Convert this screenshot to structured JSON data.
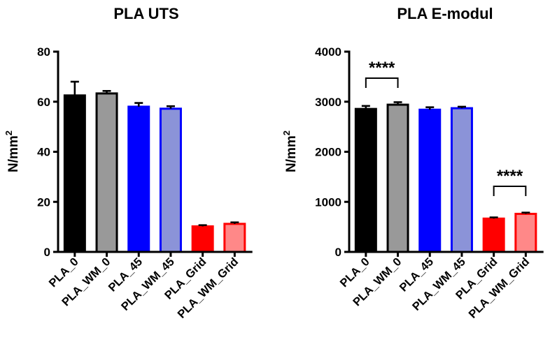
{
  "chart_data": [
    {
      "type": "bar",
      "title": "PLA UTS",
      "ylabel": "N/mm",
      "ylabel_sup": "2",
      "ylim": [
        0,
        80
      ],
      "yticks": [
        0,
        20,
        40,
        60,
        80
      ],
      "categories": [
        "PLA_0",
        "PLA_WM_0",
        "PLA_45",
        "PLA_WM_45",
        "PLA_Grid",
        "PLA_WM_Grid"
      ],
      "values": [
        62.5,
        63.3,
        58.0,
        57.2,
        10.2,
        11.2
      ],
      "errors": [
        5.5,
        1.0,
        1.5,
        1.0,
        0.5,
        0.6
      ],
      "fill_colors": [
        "#000000",
        "#999999",
        "#0000ff",
        "#8b93d8",
        "#ff0000",
        "#ff8888"
      ],
      "edge_colors": [
        "#000000",
        "#000000",
        "#0000ff",
        "#0000ff",
        "#ff0000",
        "#ff0000"
      ],
      "significance": []
    },
    {
      "type": "bar",
      "title": "PLA E-modul",
      "ylabel": "N/mm",
      "ylabel_sup": "2",
      "ylim": [
        0,
        4000
      ],
      "yticks": [
        0,
        1000,
        2000,
        3000,
        4000
      ],
      "categories": [
        "PLA_0",
        "PLA_WM_0",
        "PLA_45",
        "PLA_WM_45",
        "PLA_Grid",
        "PLA_WM_Grid"
      ],
      "values": [
        2855,
        2940,
        2840,
        2870,
        665,
        760
      ],
      "errors": [
        60,
        50,
        50,
        30,
        25,
        25
      ],
      "fill_colors": [
        "#000000",
        "#999999",
        "#0000ff",
        "#8b93d8",
        "#ff0000",
        "#ff8888"
      ],
      "edge_colors": [
        "#000000",
        "#000000",
        "#0000ff",
        "#0000ff",
        "#ff0000",
        "#ff0000"
      ],
      "significance": [
        {
          "from": 0,
          "to": 1,
          "label": "****"
        },
        {
          "from": 4,
          "to": 5,
          "label": "****"
        }
      ]
    }
  ]
}
